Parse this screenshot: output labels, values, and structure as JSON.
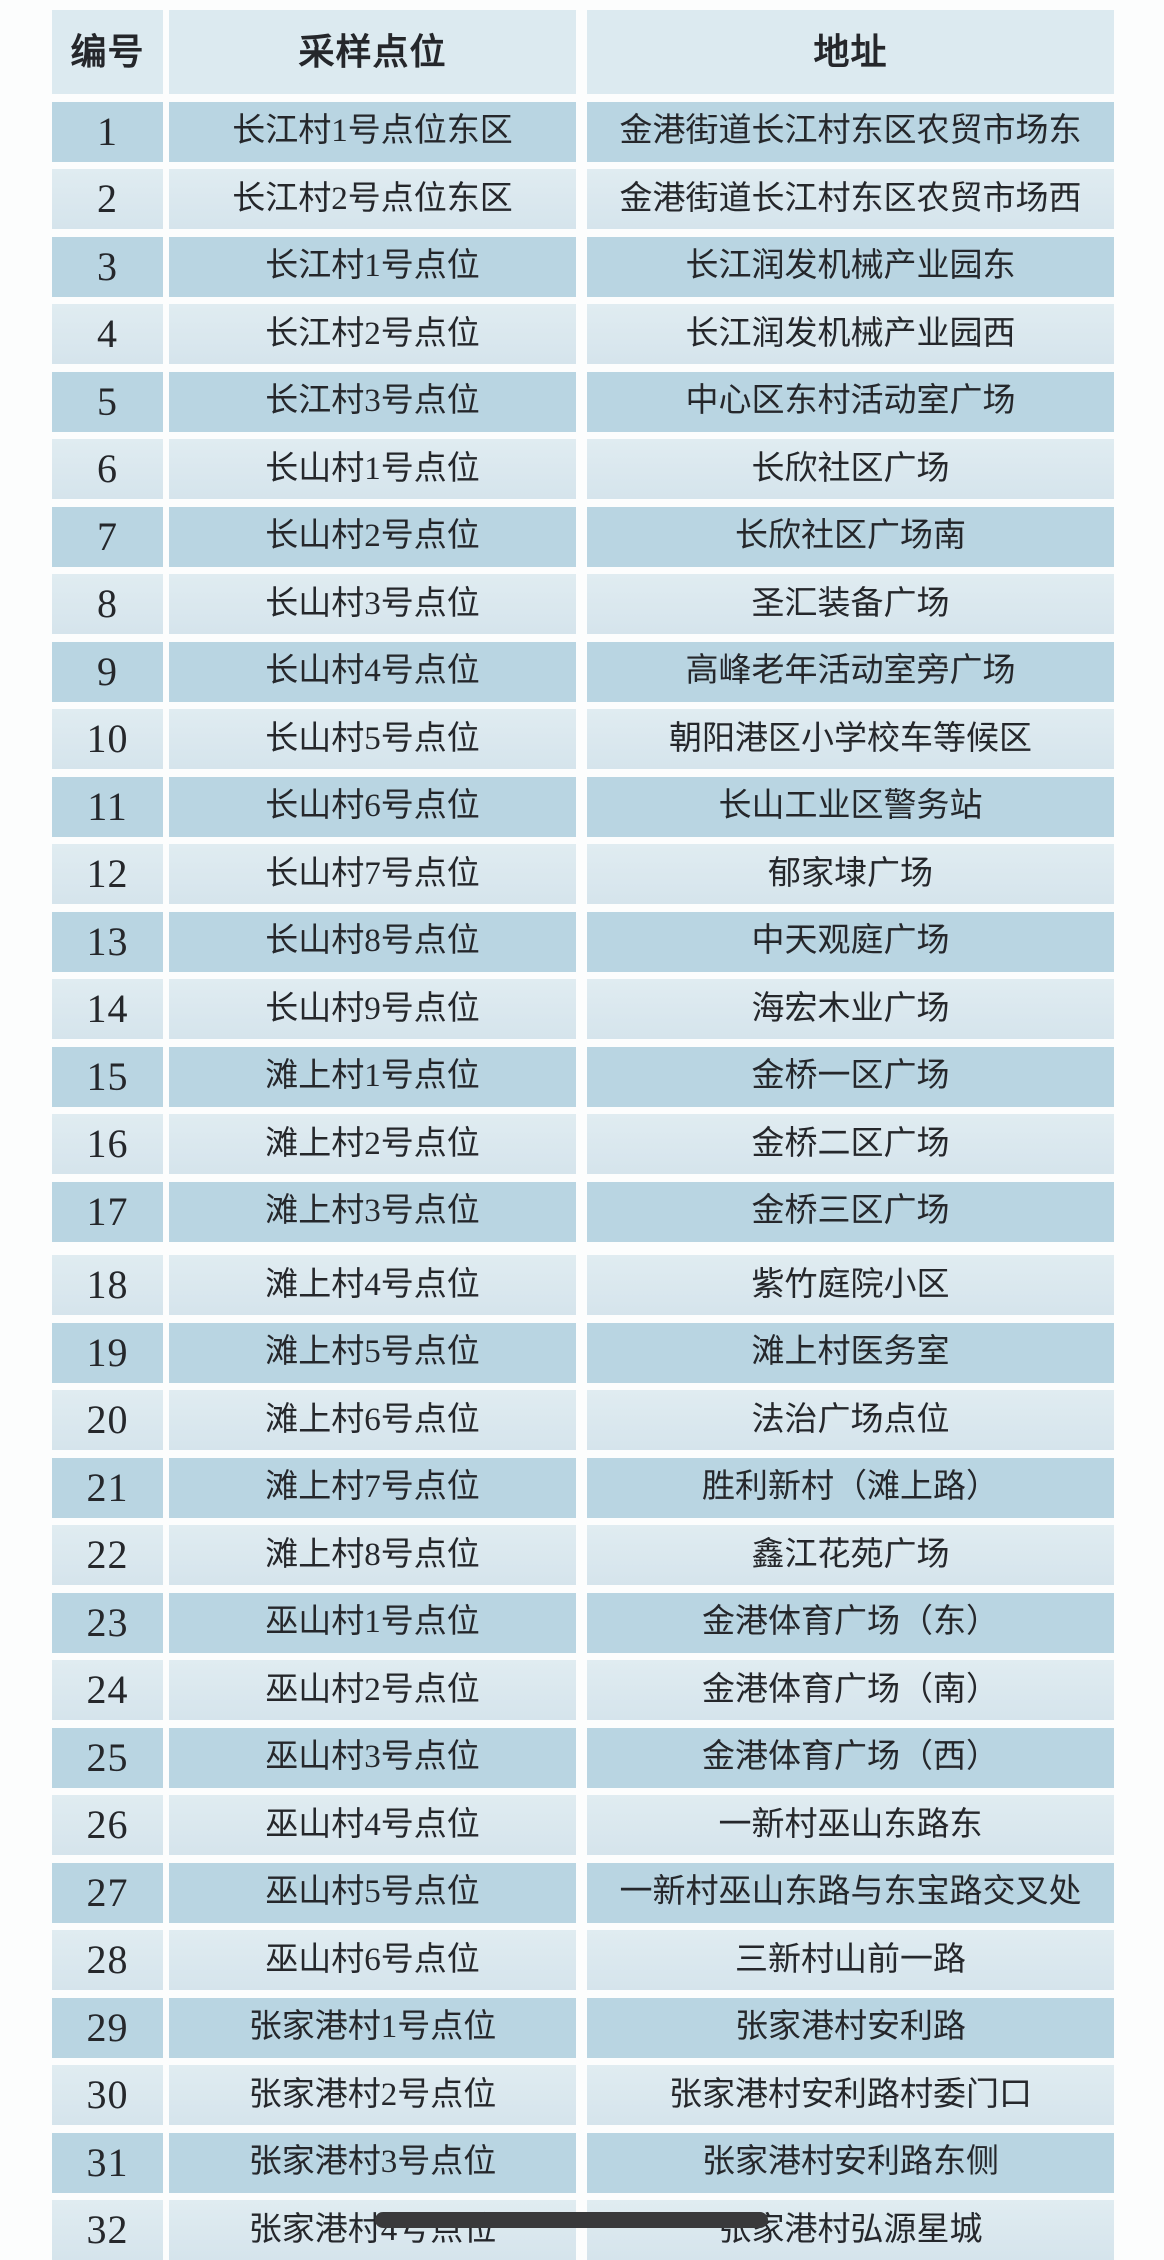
{
  "table": {
    "columns": [
      "编号",
      "采样点位",
      "地址"
    ],
    "rows": [
      {
        "no": "1",
        "point": "长江村1号点位东区",
        "address": "金港街道长江村东区农贸市场东"
      },
      {
        "no": "2",
        "point": "长江村2号点位东区",
        "address": "金港街道长江村东区农贸市场西"
      },
      {
        "no": "3",
        "point": "长江村1号点位",
        "address": "长江润发机械产业园东"
      },
      {
        "no": "4",
        "point": "长江村2号点位",
        "address": "长江润发机械产业园西"
      },
      {
        "no": "5",
        "point": "长江村3号点位",
        "address": "中心区东村活动室广场"
      },
      {
        "no": "6",
        "point": "长山村1号点位",
        "address": "长欣社区广场"
      },
      {
        "no": "7",
        "point": "长山村2号点位",
        "address": "长欣社区广场南"
      },
      {
        "no": "8",
        "point": "长山村3号点位",
        "address": "圣汇装备广场"
      },
      {
        "no": "9",
        "point": "长山村4号点位",
        "address": "高峰老年活动室旁广场"
      },
      {
        "no": "10",
        "point": "长山村5号点位",
        "address": "朝阳港区小学校车等候区"
      },
      {
        "no": "11",
        "point": "长山村6号点位",
        "address": "长山工业区警务站"
      },
      {
        "no": "12",
        "point": "长山村7号点位",
        "address": "郁家埭广场"
      },
      {
        "no": "13",
        "point": "长山村8号点位",
        "address": "中天观庭广场"
      },
      {
        "no": "14",
        "point": "长山村9号点位",
        "address": "海宏木业广场"
      },
      {
        "no": "15",
        "point": "滩上村1号点位",
        "address": "金桥一区广场"
      },
      {
        "no": "16",
        "point": "滩上村2号点位",
        "address": "金桥二区广场"
      },
      {
        "no": "17",
        "point": "滩上村3号点位",
        "address": "金桥三区广场"
      },
      {
        "no": "18",
        "point": "滩上村4号点位",
        "address": "紫竹庭院小区"
      },
      {
        "no": "19",
        "point": "滩上村5号点位",
        "address": "滩上村医务室"
      },
      {
        "no": "20",
        "point": "滩上村6号点位",
        "address": "法治广场点位"
      },
      {
        "no": "21",
        "point": "滩上村7号点位",
        "address": "胜利新村（滩上路）"
      },
      {
        "no": "22",
        "point": "滩上村8号点位",
        "address": "鑫江花苑广场"
      },
      {
        "no": "23",
        "point": "巫山村1号点位",
        "address": "金港体育广场（东）"
      },
      {
        "no": "24",
        "point": "巫山村2号点位",
        "address": "金港体育广场（南）"
      },
      {
        "no": "25",
        "point": "巫山村3号点位",
        "address": "金港体育广场（西）"
      },
      {
        "no": "26",
        "point": "巫山村4号点位",
        "address": "一新村巫山东路东"
      },
      {
        "no": "27",
        "point": "巫山村5号点位",
        "address": "一新村巫山东路与东宝路交叉处"
      },
      {
        "no": "28",
        "point": "巫山村6号点位",
        "address": "三新村山前一路"
      },
      {
        "no": "29",
        "point": "张家港村1号点位",
        "address": "张家港村安利路"
      },
      {
        "no": "30",
        "point": "张家港村2号点位",
        "address": "张家港村安利路村委门口"
      },
      {
        "no": "31",
        "point": "张家港村3号点位",
        "address": "张家港村安利路东侧"
      },
      {
        "no": "32",
        "point": "张家港村4号点位",
        "address": "张家港村弘源星城"
      }
    ]
  },
  "colors": {
    "header_bg": "#dceaf0",
    "row_dark_bg": "#b9d5e2",
    "row_light_bg": "#d9e7ee",
    "text": "#25272b",
    "page_bg": "#fcfdfd",
    "home_indicator": "#39393b"
  },
  "icons": {
    "home_indicator": "rounded-bar"
  }
}
